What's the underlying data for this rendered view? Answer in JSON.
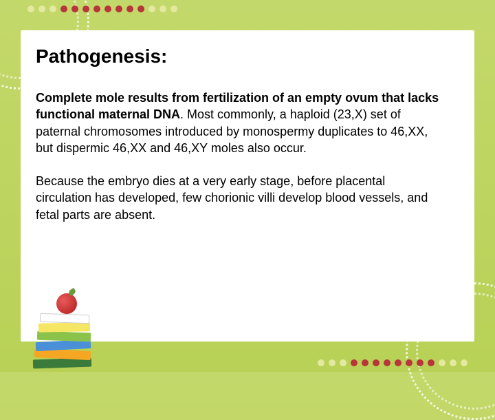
{
  "decoration": {
    "dot_colors_top": [
      "#e3e99f",
      "#e3e99f",
      "#e3e99f",
      "#b8353a",
      "#b8353a",
      "#b8353a",
      "#b8353a",
      "#b8353a",
      "#b8353a",
      "#b8353a",
      "#b8353a",
      "#e3e99f",
      "#e3e99f",
      "#e3e99f"
    ],
    "dot_colors_bottom": [
      "#e3e99f",
      "#e3e99f",
      "#e3e99f",
      "#b8353a",
      "#b8353a",
      "#b8353a",
      "#b8353a",
      "#b8353a",
      "#b8353a",
      "#b8353a",
      "#b8353a",
      "#e3e99f",
      "#e3e99f",
      "#e3e99f"
    ]
  },
  "slide": {
    "title": "Pathogenesis:",
    "title_fontsize": 28,
    "body_fontsize": 18,
    "text_color": "#000000",
    "background_gradient_top": "#c3d86a",
    "background_gradient_bottom": "#b8d156",
    "panel_color": "#ffffff",
    "para1_bold": "Complete mole results from fertilization of an empty ovum that lacks functional maternal DNA",
    "para1_rest": ". Most commonly, a haploid (23,X) set of paternal chromosomes introduced by monospermy duplicates to 46,XX,",
    "para1_line2": " but dispermic 46,XX and 46,XY moles also occur.",
    "para2": "Because the embryo dies at a very early stage, before placental circulation has developed, few chorionic villi develop blood vessels, and fetal parts are absent."
  }
}
